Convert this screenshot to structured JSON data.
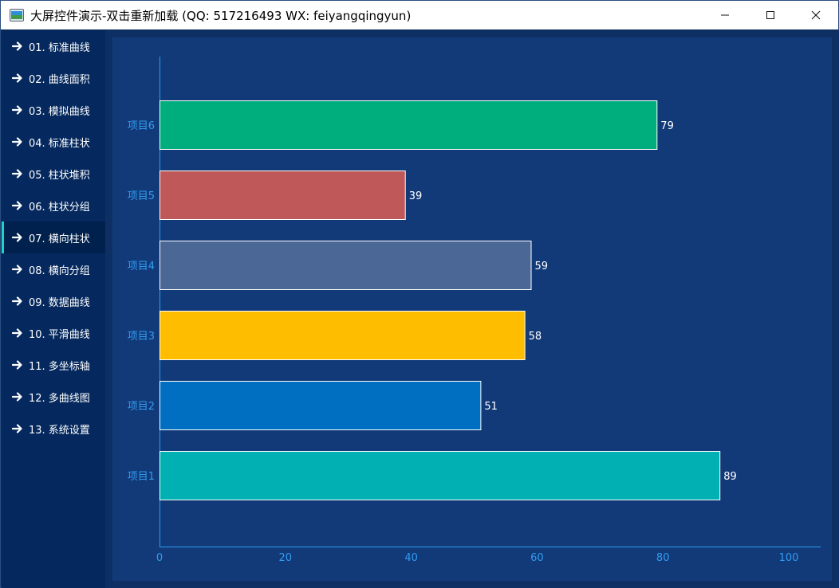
{
  "window": {
    "title": "大屏控件演示-双击重新加载 (QQ: 517216493  WX: feiyangqingyun)",
    "minimize_icon": "minimize-icon",
    "maximize_icon": "maximize-icon",
    "close_icon": "close-icon"
  },
  "sidebar": {
    "active_index": 6,
    "items": [
      {
        "label": "01. 标准曲线"
      },
      {
        "label": "02. 曲线面积"
      },
      {
        "label": "03. 模拟曲线"
      },
      {
        "label": "04. 标准柱状"
      },
      {
        "label": "05. 柱状堆积"
      },
      {
        "label": "06. 柱状分组"
      },
      {
        "label": "07. 横向柱状"
      },
      {
        "label": "08. 横向分组"
      },
      {
        "label": "09. 数据曲线"
      },
      {
        "label": "10. 平滑曲线"
      },
      {
        "label": "11. 多坐标轴"
      },
      {
        "label": "12. 多曲线图"
      },
      {
        "label": "13. 系统设置"
      }
    ]
  },
  "chart_data": {
    "type": "bar",
    "orientation": "horizontal",
    "title": "",
    "xlabel": "",
    "ylabel": "",
    "xlim": [
      0,
      100
    ],
    "x_ticks": [
      "0",
      "20",
      "40",
      "60",
      "80",
      "100"
    ],
    "categories": [
      "项目1",
      "项目2",
      "项目3",
      "项目4",
      "项目5",
      "项目6"
    ],
    "values": [
      89,
      51,
      58,
      59,
      39,
      79
    ],
    "colors": [
      "#00b0b3",
      "#006fc1",
      "#ffbd00",
      "#4a6796",
      "#bf5858",
      "#00ad7c"
    ],
    "bar_border_color": "#ffffff",
    "axis_color": "#2f9bf0",
    "grid": false,
    "legend": "none"
  }
}
